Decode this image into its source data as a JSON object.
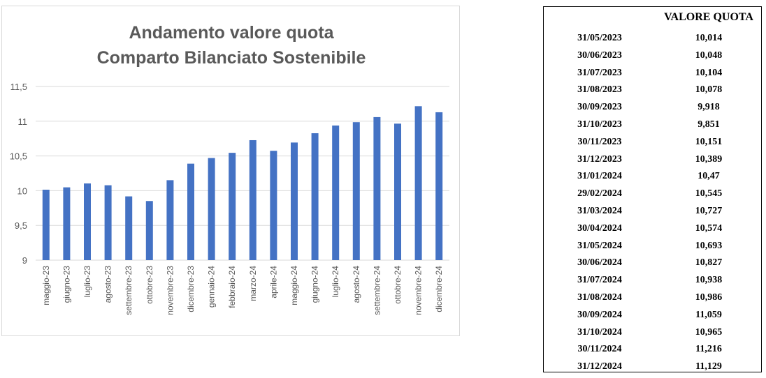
{
  "chart_data": {
    "type": "bar",
    "title": [
      "Andamento valore quota",
      "Comparto Bilanciato Sostenibile"
    ],
    "categories": [
      "maggio-23",
      "giugno-23",
      "luglio-23",
      "agosto-23",
      "settembre-23",
      "ottobre-23",
      "novembre-23",
      "dicembre-23",
      "gennaio-24",
      "febbraio-24",
      "marzo-24",
      "aprile-24",
      "maggio-24",
      "giugno-24",
      "luglio-24",
      "agosto-24",
      "settembre-24",
      "ottobre-24",
      "novembre-24",
      "dicembre-24"
    ],
    "values": [
      10.014,
      10.048,
      10.104,
      10.078,
      9.918,
      9.851,
      10.151,
      10.389,
      10.47,
      10.545,
      10.727,
      10.574,
      10.693,
      10.827,
      10.938,
      10.986,
      11.059,
      10.965,
      11.216,
      11.129
    ],
    "ylim": [
      9,
      11.5
    ],
    "yticks": [
      9,
      9.5,
      10,
      10.5,
      11,
      11.5
    ],
    "ytick_labels": [
      "9",
      "9,5",
      "10",
      "10,5",
      "11",
      "11,5"
    ],
    "grid": true,
    "bar_color": "#4472C4"
  },
  "table": {
    "header": "VALORE QUOTA",
    "rows": [
      {
        "date": "31/05/2023",
        "value": "10,014"
      },
      {
        "date": "30/06/2023",
        "value": "10,048"
      },
      {
        "date": "31/07/2023",
        "value": "10,104"
      },
      {
        "date": "31/08/2023",
        "value": "10,078"
      },
      {
        "date": "30/09/2023",
        "value": "9,918"
      },
      {
        "date": "31/10/2023",
        "value": "9,851"
      },
      {
        "date": "30/11/2023",
        "value": "10,151"
      },
      {
        "date": "31/12/2023",
        "value": "10,389"
      },
      {
        "date": "31/01/2024",
        "value": "10,47"
      },
      {
        "date": "29/02/2024",
        "value": "10,545"
      },
      {
        "date": "31/03/2024",
        "value": "10,727"
      },
      {
        "date": "30/04/2024",
        "value": "10,574"
      },
      {
        "date": "31/05/2024",
        "value": "10,693"
      },
      {
        "date": "30/06/2024",
        "value": "10,827"
      },
      {
        "date": "31/07/2024",
        "value": "10,938"
      },
      {
        "date": "31/08/2024",
        "value": "10,986"
      },
      {
        "date": "30/09/2024",
        "value": "11,059"
      },
      {
        "date": "31/10/2024",
        "value": "10,965"
      },
      {
        "date": "30/11/2024",
        "value": "11,216"
      },
      {
        "date": "31/12/2024",
        "value": "11,129"
      }
    ]
  }
}
